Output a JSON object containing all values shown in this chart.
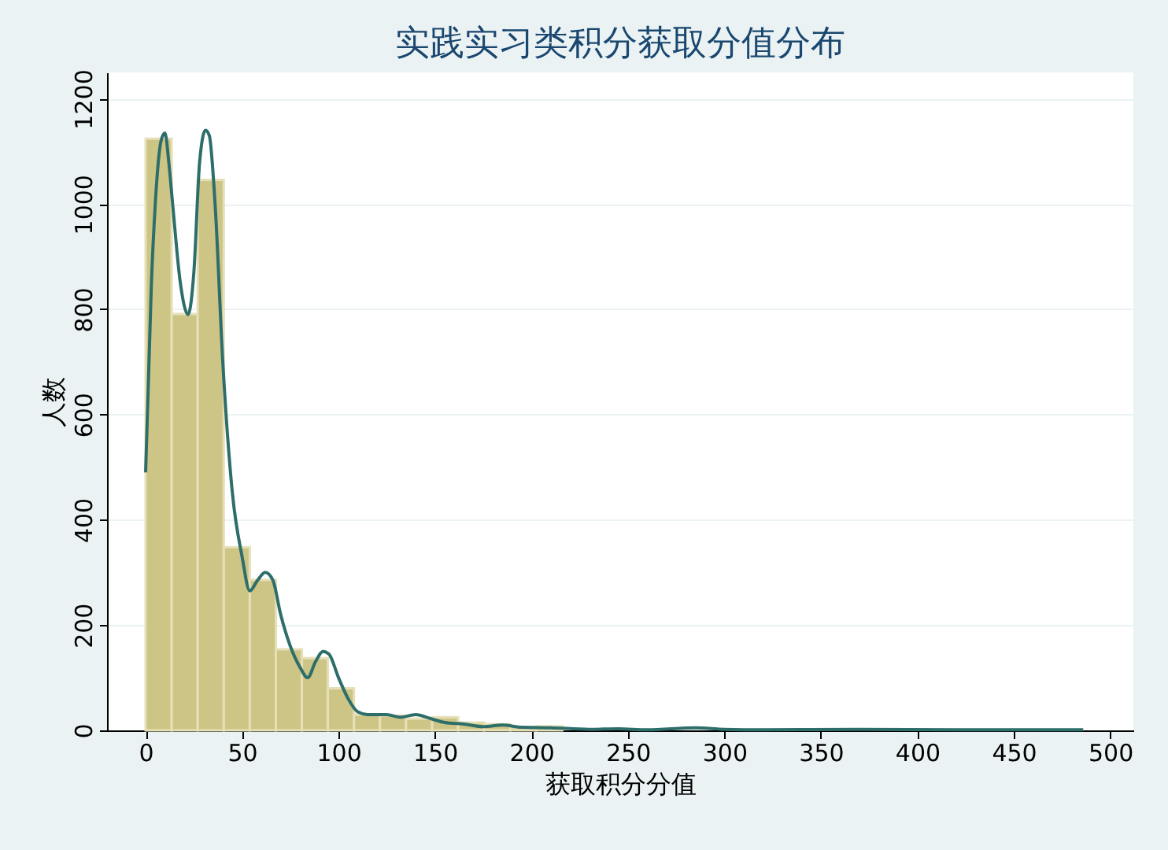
{
  "chart_data": {
    "type": "histogram",
    "title": "实践实习类积分获取分值分布",
    "xlabel": "获取积分分值",
    "ylabel": "人数",
    "bins": [
      0,
      13.5,
      27,
      40.5,
      54,
      67.5,
      81,
      94.5,
      108,
      121.5,
      135,
      148.5,
      162,
      175.5,
      189,
      202.5,
      216,
      229.5,
      243,
      256.5,
      270,
      283.5,
      297,
      310.5,
      324,
      337.5,
      351,
      364.5,
      378,
      391.5,
      405,
      418.5,
      432,
      445.5,
      459,
      472.5,
      486
    ],
    "values": [
      1124,
      791,
      1046,
      348,
      286,
      154,
      137,
      80,
      30,
      28,
      22,
      25,
      15,
      12,
      6,
      8,
      null,
      null,
      null,
      null,
      null,
      null,
      null,
      null,
      null,
      null,
      null,
      null,
      null,
      null,
      null,
      null,
      null,
      null,
      null,
      null
    ],
    "color": "#cdc585",
    "series": [
      {
        "type": "line",
        "color": "#2e6e6a",
        "x": [
          0,
          3,
          5,
          8,
          10,
          12,
          14,
          18,
          22,
          25,
          28,
          31,
          33,
          36,
          40,
          45,
          50,
          54,
          58,
          62,
          66,
          70,
          75,
          80,
          84,
          88,
          92,
          95,
          100,
          105,
          110,
          115,
          125,
          132,
          140,
          148,
          155,
          165,
          175,
          185,
          195,
          210,
          230,
          245,
          260,
          285,
          300,
          320,
          370,
          420,
          486
        ],
        "values": [
          490,
          850,
          1000,
          1120,
          1135,
          1080,
          1000,
          850,
          790,
          870,
          1080,
          1140,
          1130,
          1000,
          700,
          450,
          330,
          265,
          285,
          300,
          285,
          220,
          160,
          120,
          100,
          130,
          150,
          145,
          100,
          60,
          35,
          30,
          30,
          25,
          30,
          22,
          15,
          12,
          7,
          10,
          6,
          5,
          2,
          3,
          1,
          5,
          2,
          1,
          2,
          1,
          1
        ]
      }
    ],
    "xlim": [
      -20,
      512
    ],
    "ylim": [
      0,
      1250
    ],
    "xticks": [
      0,
      50,
      100,
      150,
      200,
      250,
      300,
      350,
      400,
      450,
      500
    ],
    "yticks": [
      0,
      200,
      400,
      600,
      800,
      1000,
      1200
    ],
    "grid": "y"
  }
}
